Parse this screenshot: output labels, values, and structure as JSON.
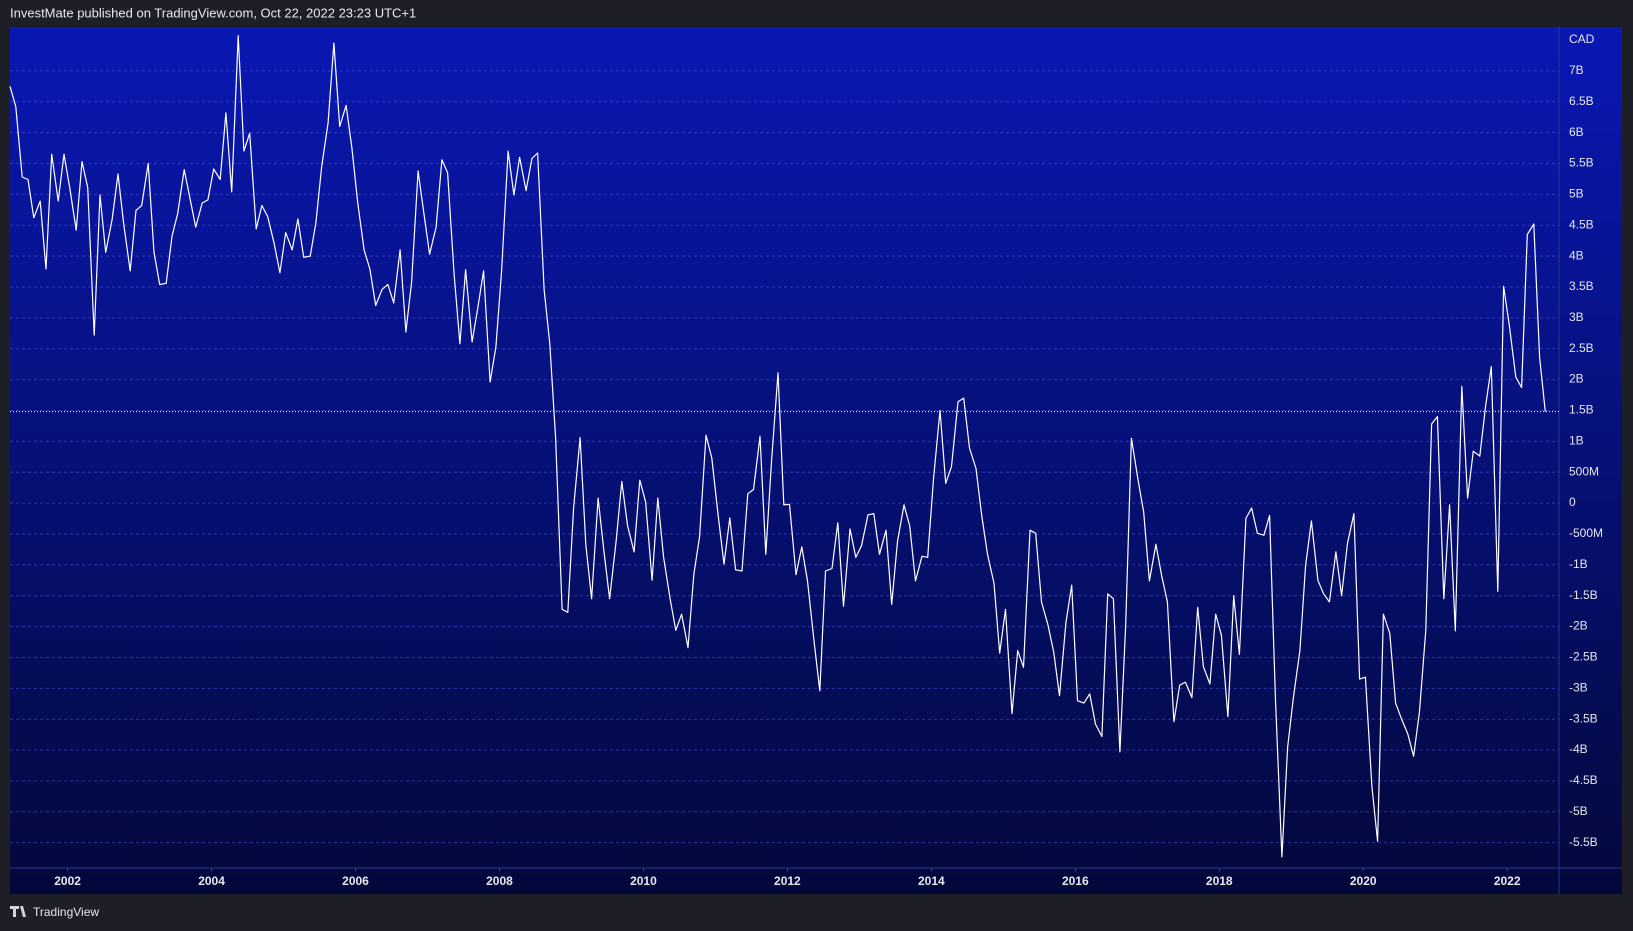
{
  "header": "InvestMate published on TradingView.com, Oct 22, 2022 23:23 UTC+1",
  "footer": "TradingView",
  "chart_data": {
    "type": "line",
    "currency": "CAD",
    "color": "#ffffff",
    "grid": true,
    "xlim": [
      2001.2,
      2022.72
    ],
    "xticks": [
      2002,
      2004,
      2006,
      2008,
      2010,
      2012,
      2014,
      2016,
      2018,
      2020,
      2022
    ],
    "ylim": [
      -5.91,
      7.71
    ],
    "yticks": [
      {
        "value": -5.5,
        "label": "-5.5B"
      },
      {
        "value": -5,
        "label": "-5B"
      },
      {
        "value": -4.5,
        "label": "-4.5B"
      },
      {
        "value": -4,
        "label": "-4B"
      },
      {
        "value": -3.5,
        "label": "-3.5B"
      },
      {
        "value": -3,
        "label": "-3B"
      },
      {
        "value": -2.5,
        "label": "-2.5B"
      },
      {
        "value": -2,
        "label": "-2B"
      },
      {
        "value": -1.5,
        "label": "-1.5B"
      },
      {
        "value": -1,
        "label": "-1B"
      },
      {
        "value": -0.5,
        "label": "-500M"
      },
      0,
      {
        "value": 0.5,
        "label": "500M"
      },
      {
        "value": 1,
        "label": "1B"
      },
      {
        "value": 1.5,
        "label": "1.5B"
      },
      {
        "value": 2,
        "label": "2B"
      },
      {
        "value": 2.5,
        "label": "2.5B"
      },
      {
        "value": 3,
        "label": "3B"
      },
      {
        "value": 3.5,
        "label": "3.5B"
      },
      {
        "value": 4,
        "label": "4B"
      },
      {
        "value": 4.5,
        "label": "4.5B"
      },
      {
        "value": 5,
        "label": "5B"
      },
      {
        "value": 5.5,
        "label": "5.5B"
      },
      {
        "value": 6,
        "label": "6B"
      },
      {
        "value": 6.5,
        "label": "6.5B"
      },
      {
        "value": 7,
        "label": "7B"
      }
    ],
    "x": [
      2001.2,
      2001.28,
      2001.37,
      2001.45,
      2001.53,
      2001.62,
      2001.7,
      2001.78,
      2001.87,
      2001.95,
      2002.03,
      2002.12,
      2002.2,
      2002.28,
      2002.37,
      2002.45,
      2002.53,
      2002.62,
      2002.7,
      2002.78,
      2002.87,
      2002.95,
      2003.03,
      2003.12,
      2003.2,
      2003.28,
      2003.37,
      2003.45,
      2003.53,
      2003.62,
      2003.7,
      2003.78,
      2003.87,
      2003.95,
      2004.03,
      2004.12,
      2004.2,
      2004.28,
      2004.37,
      2004.45,
      2004.53,
      2004.62,
      2004.7,
      2004.78,
      2004.87,
      2004.95,
      2005.03,
      2005.12,
      2005.2,
      2005.28,
      2005.37,
      2005.45,
      2005.53,
      2005.62,
      2005.7,
      2005.78,
      2005.87,
      2005.95,
      2006.03,
      2006.12,
      2006.2,
      2006.28,
      2006.37,
      2006.45,
      2006.53,
      2006.62,
      2006.7,
      2006.78,
      2006.87,
      2006.95,
      2007.03,
      2007.12,
      2007.2,
      2007.28,
      2007.37,
      2007.45,
      2007.53,
      2007.62,
      2007.7,
      2007.78,
      2007.87,
      2007.95,
      2008.03,
      2008.12,
      2008.2,
      2008.28,
      2008.37,
      2008.45,
      2008.53,
      2008.62,
      2008.7,
      2008.78,
      2008.87,
      2008.95,
      2009.03,
      2009.12,
      2009.2,
      2009.28,
      2009.37,
      2009.45,
      2009.53,
      2009.62,
      2009.7,
      2009.78,
      2009.87,
      2009.95,
      2010.03,
      2010.12,
      2010.2,
      2010.28,
      2010.37,
      2010.45,
      2010.53,
      2010.62,
      2010.7,
      2010.78,
      2010.87,
      2010.95,
      2011.03,
      2011.12,
      2011.2,
      2011.28,
      2011.37,
      2011.45,
      2011.53,
      2011.62,
      2011.7,
      2011.78,
      2011.87,
      2011.95,
      2012.03,
      2012.12,
      2012.2,
      2012.28,
      2012.37,
      2012.45,
      2012.53,
      2012.62,
      2012.7,
      2012.78,
      2012.87,
      2012.95,
      2013.03,
      2013.12,
      2013.2,
      2013.28,
      2013.37,
      2013.45,
      2013.53,
      2013.62,
      2013.7,
      2013.78,
      2013.87,
      2013.95,
      2014.03,
      2014.12,
      2014.2,
      2014.28,
      2014.37,
      2014.45,
      2014.53,
      2014.62,
      2014.7,
      2014.78,
      2014.87,
      2014.95,
      2015.03,
      2015.12,
      2015.2,
      2015.28,
      2015.37,
      2015.45,
      2015.53,
      2015.62,
      2015.7,
      2015.78,
      2015.87,
      2015.95,
      2016.03,
      2016.12,
      2016.2,
      2016.28,
      2016.37,
      2016.45,
      2016.53,
      2016.62,
      2016.7,
      2016.78,
      2016.87,
      2016.95,
      2017.03,
      2017.12,
      2017.2,
      2017.28,
      2017.37,
      2017.45,
      2017.53,
      2017.62,
      2017.7,
      2017.78,
      2017.87,
      2017.95,
      2018.03,
      2018.12,
      2018.2,
      2018.28,
      2018.37,
      2018.45,
      2018.53,
      2018.62,
      2018.7,
      2018.78,
      2018.87,
      2018.95,
      2019.03,
      2019.12,
      2019.2,
      2019.28,
      2019.37,
      2019.45,
      2019.53,
      2019.62,
      2019.7,
      2019.78,
      2019.87,
      2019.95,
      2020.03,
      2020.12,
      2020.2,
      2020.28,
      2020.37,
      2020.45,
      2020.53,
      2020.62,
      2020.7,
      2020.78,
      2020.87,
      2020.95,
      2021.03,
      2021.12,
      2021.2,
      2021.28,
      2021.37,
      2021.45,
      2021.53,
      2021.62,
      2021.7,
      2021.78,
      2021.87,
      2021.95,
      2022.03,
      2022.12,
      2022.2,
      2022.28,
      2022.37,
      2022.45,
      2022.53
    ],
    "values": [
      6.75,
      6.42,
      5.28,
      5.24,
      4.62,
      4.89,
      3.79,
      5.65,
      4.89,
      5.65,
      5.11,
      4.42,
      5.53,
      5.11,
      2.72,
      4.99,
      4.06,
      4.6,
      5.33,
      4.52,
      3.76,
      4.74,
      4.82,
      5.5,
      4.06,
      3.54,
      3.56,
      4.32,
      4.69,
      5.4,
      4.94,
      4.47,
      4.86,
      4.91,
      5.41,
      5.24,
      6.32,
      5.04,
      7.57,
      5.7,
      5.99,
      4.44,
      4.82,
      4.64,
      4.2,
      3.73,
      4.38,
      4.1,
      4.6,
      3.98,
      4.0,
      4.54,
      5.45,
      6.16,
      7.45,
      6.1,
      6.44,
      5.75,
      4.87,
      4.1,
      3.79,
      3.2,
      3.46,
      3.54,
      3.24,
      4.1,
      2.77,
      3.58,
      5.38,
      4.69,
      4.03,
      4.47,
      5.56,
      5.35,
      3.71,
      2.58,
      3.78,
      2.61,
      3.17,
      3.76,
      1.96,
      2.53,
      3.76,
      5.7,
      4.99,
      5.6,
      5.06,
      5.58,
      5.67,
      3.46,
      2.58,
      1.06,
      -1.72,
      -1.77,
      -0.08,
      1.06,
      -0.67,
      -1.55,
      0.08,
      -0.76,
      -1.55,
      -0.62,
      0.35,
      -0.37,
      -0.79,
      0.37,
      0.02,
      -1.25,
      0.08,
      -0.88,
      -1.55,
      -2.06,
      -1.8,
      -2.34,
      -1.16,
      -0.54,
      1.1,
      0.73,
      -0.12,
      -0.99,
      -0.24,
      -1.08,
      -1.1,
      0.15,
      0.22,
      1.08,
      -0.83,
      0.67,
      2.11,
      -0.03,
      -0.02,
      -1.16,
      -0.71,
      -1.26,
      -2.23,
      -3.04,
      -1.1,
      -1.06,
      -0.32,
      -1.67,
      -0.42,
      -0.88,
      -0.69,
      -0.19,
      -0.17,
      -0.83,
      -0.44,
      -1.64,
      -0.62,
      -0.03,
      -0.37,
      -1.26,
      -0.86,
      -0.88,
      0.39,
      1.5,
      0.32,
      0.59,
      1.64,
      1.7,
      0.89,
      0.56,
      -0.2,
      -0.83,
      -1.3,
      -2.43,
      -1.72,
      -3.41,
      -2.39,
      -2.66,
      -0.44,
      -0.49,
      -1.6,
      -1.97,
      -2.41,
      -3.12,
      -1.94,
      -1.33,
      -3.2,
      -3.24,
      -3.09,
      -3.58,
      -3.78,
      -1.47,
      -1.55,
      -4.03,
      -1.97,
      1.05,
      0.39,
      -0.15,
      -1.26,
      -0.67,
      -1.18,
      -1.6,
      -3.54,
      -2.95,
      -2.9,
      -3.15,
      -1.69,
      -2.65,
      -2.93,
      -1.8,
      -2.14,
      -3.46,
      -1.5,
      -2.45,
      -0.25,
      -0.08,
      -0.49,
      -0.52,
      -0.2,
      -3.15,
      -5.73,
      -3.96,
      -3.15,
      -2.39,
      -1.01,
      -0.29,
      -1.25,
      -1.47,
      -1.6,
      -0.79,
      -1.5,
      -0.66,
      -0.17,
      -2.85,
      -2.82,
      -4.59,
      -5.48,
      -1.8,
      -2.11,
      -3.24,
      -3.49,
      -3.74,
      -4.1,
      -3.39,
      -2.06,
      1.28,
      1.4,
      -1.55,
      -0.03,
      -2.07,
      1.89,
      0.08,
      0.84,
      0.76,
      1.57,
      2.21,
      -1.43,
      3.51,
      2.88,
      2.04,
      1.87,
      4.35,
      4.52,
      2.36,
      1.48
    ]
  }
}
